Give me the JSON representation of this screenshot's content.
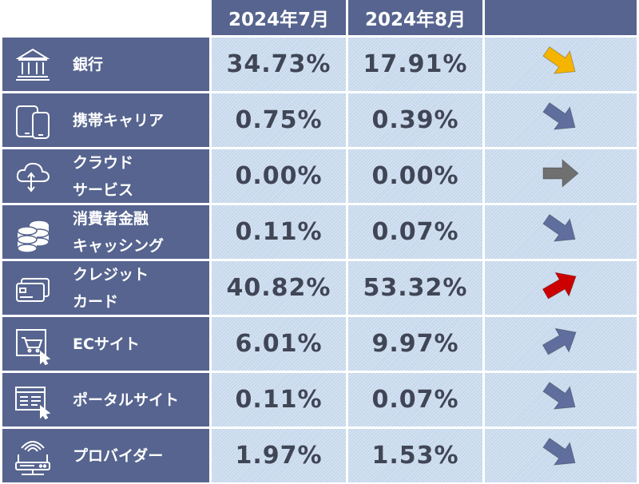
{
  "header": {
    "col_jul": "2024年7月",
    "col_aug": "2024年8月"
  },
  "colors": {
    "header_bg": "#56648f",
    "cell_bg": "#c6d8ec",
    "value_text": "#404656",
    "arrow_down_gold": "#f5b400",
    "arrow_blue": "#5f6e9c",
    "arrow_flat_gray": "#707070",
    "arrow_up_red": "#cc0000"
  },
  "rows": [
    {
      "icon": "bank-icon",
      "line1": "銀行",
      "line2": "",
      "jul": "34.73%",
      "aug": "17.91%",
      "trend": "down",
      "arrow_color": "#f5b400"
    },
    {
      "icon": "mobile-devices-icon",
      "line1": "携帯キャリア",
      "line2": "",
      "jul": "0.75%",
      "aug": "0.39%",
      "trend": "down",
      "arrow_color": "#5f6e9c"
    },
    {
      "icon": "cloud-icon",
      "line1": "クラウド",
      "line2": "サービス",
      "jul": "0.00%",
      "aug": "0.00%",
      "trend": "flat",
      "arrow_color": "#707070"
    },
    {
      "icon": "coin-stack-icon",
      "line1": "消費者金融",
      "line2": "キャッシング",
      "jul": "0.11%",
      "aug": "0.07%",
      "trend": "down",
      "arrow_color": "#5f6e9c"
    },
    {
      "icon": "credit-card-icon",
      "line1": "クレジット",
      "line2": "カード",
      "jul": "40.82%",
      "aug": "53.32%",
      "trend": "up",
      "arrow_color": "#cc0000"
    },
    {
      "icon": "shopping-cart-icon",
      "line1": "ECサイト",
      "line2": "",
      "jul": "6.01%",
      "aug": "9.97%",
      "trend": "up",
      "arrow_color": "#5f6e9c"
    },
    {
      "icon": "web-portal-icon",
      "line1": "ポータルサイト",
      "line2": "",
      "jul": "0.11%",
      "aug": "0.07%",
      "trend": "down",
      "arrow_color": "#5f6e9c"
    },
    {
      "icon": "router-icon",
      "line1": "プロバイダー",
      "line2": "",
      "jul": "1.97%",
      "aug": "1.53%",
      "trend": "down",
      "arrow_color": "#5f6e9c"
    }
  ]
}
